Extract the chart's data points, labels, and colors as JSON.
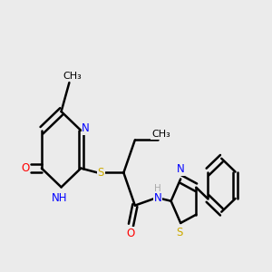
{
  "bg_color": "#ebebeb",
  "bond_color": "#000000",
  "bond_width": 1.8,
  "atom_colors": {
    "N": "#0000ff",
    "O": "#ff0000",
    "S": "#ccaa00",
    "C": "#000000",
    "H": "#aaaaaa"
  },
  "font_size": 8.5,
  "figsize": [
    3.0,
    3.0
  ],
  "dpi": 100,
  "xlim": [
    0.0,
    10.0
  ],
  "ylim": [
    2.5,
    8.5
  ]
}
